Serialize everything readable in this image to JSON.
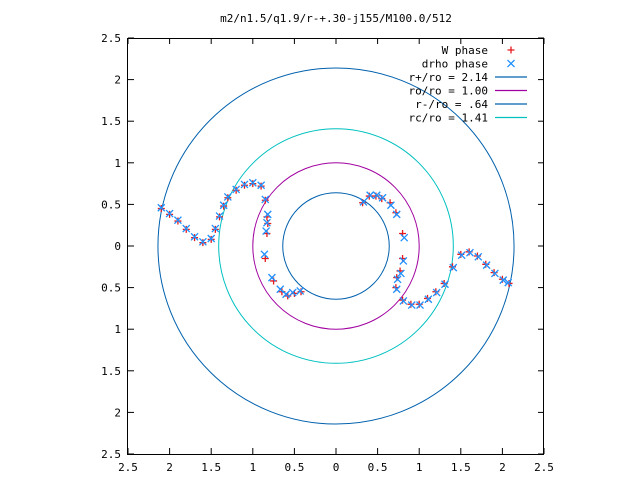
{
  "chart_data": {
    "type": "scatter",
    "title": "m2/n1.5/q1.9/r-+.30-j155/M100.0/512",
    "xlabel": "",
    "ylabel": "",
    "xlim": [
      -2.5,
      2.5
    ],
    "ylim": [
      -2.5,
      2.5
    ],
    "grid": false,
    "legend_position": "top-right",
    "x_ticks": [
      {
        "value": -2.5,
        "label": "2.5"
      },
      {
        "value": -2,
        "label": "2"
      },
      {
        "value": -1.5,
        "label": "1.5"
      },
      {
        "value": -1,
        "label": "1"
      },
      {
        "value": -0.5,
        "label": "0.5"
      },
      {
        "value": 0,
        "label": "0"
      },
      {
        "value": 0.5,
        "label": "0.5"
      },
      {
        "value": 1,
        "label": "1"
      },
      {
        "value": 1.5,
        "label": "1.5"
      },
      {
        "value": 2,
        "label": "2"
      },
      {
        "value": 2.5,
        "label": "2.5"
      }
    ],
    "y_ticks": [
      {
        "value": 2.5,
        "label": "2.5"
      },
      {
        "value": 2,
        "label": "2"
      },
      {
        "value": 1.5,
        "label": "1.5"
      },
      {
        "value": 1,
        "label": "1"
      },
      {
        "value": 0.5,
        "label": "0.5"
      },
      {
        "value": 0,
        "label": "0"
      },
      {
        "value": -0.5,
        "label": "0.5"
      },
      {
        "value": -1,
        "label": "1"
      },
      {
        "value": -1.5,
        "label": "1.5"
      },
      {
        "value": -2,
        "label": "2"
      },
      {
        "value": -2.5,
        "label": "2.5"
      }
    ],
    "circles": [
      {
        "name": "r+/ro = 2.14",
        "radius": 2.14,
        "color": "#0060ad"
      },
      {
        "name": "ro/ro = 1.00",
        "radius": 1.0,
        "color": "#a000a0"
      },
      {
        "name": "r-/ro = .64",
        "radius": 0.64,
        "color": "#0060ad"
      },
      {
        "name": "rc/ro = 1.41",
        "radius": 1.41,
        "color": "#00c0c0"
      }
    ],
    "series": [
      {
        "name": "W phase",
        "marker": "plus",
        "color": "#e41a1c",
        "points": [
          [
            -2.1,
            0.45
          ],
          [
            -2.0,
            0.38
          ],
          [
            -1.9,
            0.3
          ],
          [
            -1.8,
            0.2
          ],
          [
            -1.7,
            0.1
          ],
          [
            -1.6,
            0.04
          ],
          [
            -1.5,
            0.08
          ],
          [
            -1.45,
            0.2
          ],
          [
            -1.4,
            0.35
          ],
          [
            -1.35,
            0.48
          ],
          [
            -1.3,
            0.58
          ],
          [
            -1.2,
            0.67
          ],
          [
            -1.1,
            0.73
          ],
          [
            -1.0,
            0.75
          ],
          [
            -0.9,
            0.72
          ],
          [
            -0.85,
            0.55
          ],
          [
            -0.83,
            0.35
          ],
          [
            -0.82,
            0.27
          ],
          [
            -0.83,
            0.15
          ],
          [
            -0.85,
            -0.15
          ],
          [
            -0.75,
            -0.42
          ],
          [
            -0.65,
            -0.55
          ],
          [
            -0.58,
            -0.6
          ],
          [
            -0.5,
            -0.57
          ],
          [
            -0.42,
            -0.55
          ],
          [
            0.32,
            0.52
          ],
          [
            0.4,
            0.6
          ],
          [
            0.48,
            0.6
          ],
          [
            0.55,
            0.57
          ],
          [
            0.65,
            0.52
          ],
          [
            0.72,
            0.4
          ],
          [
            0.8,
            0.15
          ],
          [
            0.8,
            -0.15
          ],
          [
            0.77,
            -0.3
          ],
          [
            0.73,
            -0.38
          ],
          [
            0.72,
            -0.5
          ],
          [
            0.8,
            -0.65
          ],
          [
            0.9,
            -0.7
          ],
          [
            1.0,
            -0.7
          ],
          [
            1.1,
            -0.63
          ],
          [
            1.2,
            -0.55
          ],
          [
            1.3,
            -0.45
          ],
          [
            1.4,
            -0.25
          ],
          [
            1.5,
            -0.1
          ],
          [
            1.6,
            -0.07
          ],
          [
            1.7,
            -0.12
          ],
          [
            1.8,
            -0.22
          ],
          [
            1.9,
            -0.32
          ],
          [
            2.0,
            -0.4
          ],
          [
            2.08,
            -0.45
          ]
        ]
      },
      {
        "name": "drho phase",
        "marker": "cross",
        "color": "#1e90ff",
        "points": [
          [
            -2.1,
            0.46
          ],
          [
            -2.0,
            0.39
          ],
          [
            -1.9,
            0.31
          ],
          [
            -1.8,
            0.21
          ],
          [
            -1.7,
            0.11
          ],
          [
            -1.6,
            0.05
          ],
          [
            -1.5,
            0.09
          ],
          [
            -1.45,
            0.21
          ],
          [
            -1.4,
            0.36
          ],
          [
            -1.35,
            0.49
          ],
          [
            -1.3,
            0.59
          ],
          [
            -1.2,
            0.68
          ],
          [
            -1.1,
            0.74
          ],
          [
            -1.0,
            0.76
          ],
          [
            -0.9,
            0.73
          ],
          [
            -0.85,
            0.56
          ],
          [
            -0.82,
            0.38
          ],
          [
            -0.83,
            0.28
          ],
          [
            -0.84,
            0.18
          ],
          [
            -0.86,
            -0.1
          ],
          [
            -0.77,
            -0.38
          ],
          [
            -0.67,
            -0.52
          ],
          [
            -0.6,
            -0.58
          ],
          [
            -0.52,
            -0.56
          ],
          [
            -0.43,
            -0.54
          ],
          [
            0.33,
            0.53
          ],
          [
            0.41,
            0.61
          ],
          [
            0.49,
            0.61
          ],
          [
            0.56,
            0.58
          ],
          [
            0.66,
            0.49
          ],
          [
            0.73,
            0.38
          ],
          [
            0.82,
            0.1
          ],
          [
            0.81,
            -0.18
          ],
          [
            0.78,
            -0.33
          ],
          [
            0.74,
            -0.4
          ],
          [
            0.73,
            -0.52
          ],
          [
            0.81,
            -0.66
          ],
          [
            0.91,
            -0.71
          ],
          [
            1.01,
            -0.71
          ],
          [
            1.11,
            -0.64
          ],
          [
            1.21,
            -0.56
          ],
          [
            1.31,
            -0.46
          ],
          [
            1.41,
            -0.26
          ],
          [
            1.51,
            -0.11
          ],
          [
            1.61,
            -0.08
          ],
          [
            1.71,
            -0.13
          ],
          [
            1.81,
            -0.23
          ],
          [
            1.91,
            -0.33
          ],
          [
            2.01,
            -0.41
          ],
          [
            2.07,
            -0.44
          ]
        ]
      }
    ]
  }
}
